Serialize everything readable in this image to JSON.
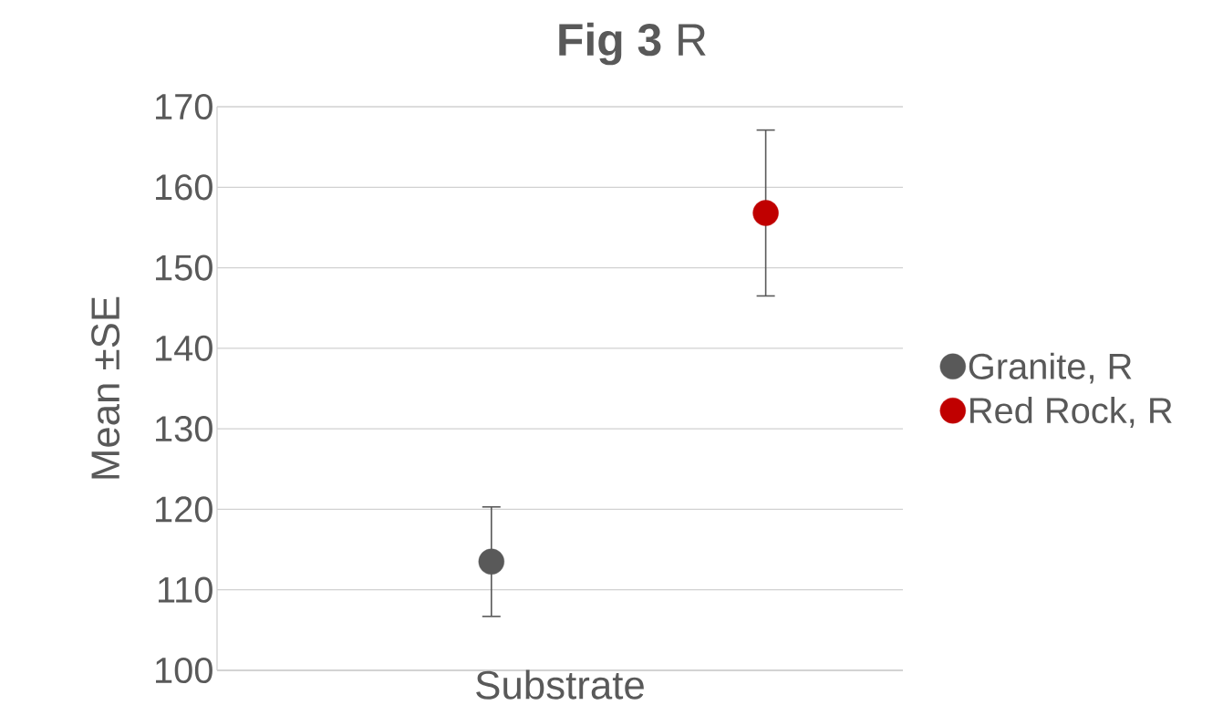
{
  "chart_data": {
    "type": "scatter",
    "title": "**Fig 3** R",
    "xlabel": "Substrate",
    "ylabel": "Mean ±SE",
    "categories": [
      null,
      null
    ],
    "series": [
      {
        "name": "Granite, R",
        "color": "#595959",
        "values": [
          113.5,
          null
        ],
        "errors": [
          6.8,
          null
        ]
      },
      {
        "name": "Red Rock, R",
        "color": "#c00000",
        "values": [
          null,
          156.8
        ],
        "errors": [
          null,
          10.3
        ]
      }
    ],
    "ylim": [
      100,
      170
    ],
    "yticks": [
      100,
      110,
      120,
      130,
      140,
      150,
      160,
      170
    ],
    "grid": "y",
    "legend": "right",
    "marker": "circle",
    "tick_labels": "y"
  }
}
